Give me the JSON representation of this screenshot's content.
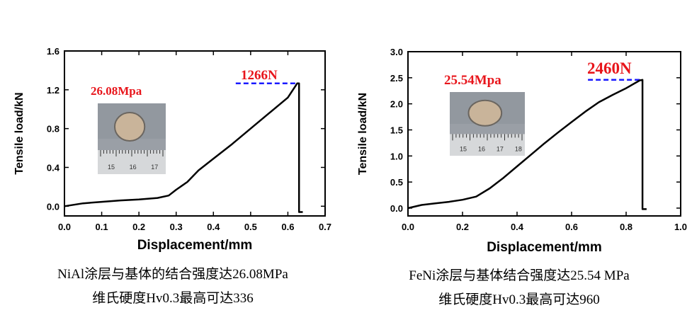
{
  "chart_data": [
    {
      "type": "line",
      "xlabel": "Displacement/mm",
      "ylabel": "Tensile load/kN",
      "xlim": [
        0.0,
        0.7
      ],
      "ylim": [
        -0.1,
        1.6
      ],
      "xticks": [
        "0.0",
        "0.1",
        "0.2",
        "0.3",
        "0.4",
        "0.5",
        "0.6",
        "0.7"
      ],
      "yticks": [
        "0.0",
        "0.4",
        "0.8",
        "1.2",
        "1.6"
      ],
      "grid": false,
      "series": [
        {
          "color": "#000000",
          "x": [
            0.0,
            0.05,
            0.1,
            0.15,
            0.2,
            0.25,
            0.28,
            0.3,
            0.33,
            0.36,
            0.4,
            0.45,
            0.5,
            0.55,
            0.6,
            0.625,
            0.625,
            0.63,
            0.63,
            0.64
          ],
          "y": [
            0.0,
            0.03,
            0.045,
            0.06,
            0.07,
            0.085,
            0.11,
            0.17,
            0.25,
            0.37,
            0.49,
            0.64,
            0.8,
            0.96,
            1.12,
            1.266,
            1.266,
            1.266,
            -0.06,
            -0.06
          ]
        }
      ],
      "peak": {
        "x": [
          0.46,
          0.625
        ],
        "y": 1.266,
        "color": "#1a1aff"
      },
      "annotations": {
        "peak_label": "1266N",
        "strength_label": "26.08Mpa",
        "color": "#e8151b"
      },
      "photo": {
        "ruler_labels": [
          "15",
          "16",
          "17"
        ]
      },
      "caption": [
        "NiAl涂层与基体的结合强度达26.08MPa",
        "维氏硬度Hv0.3最高可达336"
      ]
    },
    {
      "type": "line",
      "xlabel": "Displacement/mm",
      "ylabel": "Tensile load/kN",
      "xlim": [
        0.0,
        1.0
      ],
      "ylim": [
        -0.15,
        3.0
      ],
      "xticks": [
        "0.0",
        "0.2",
        "0.4",
        "0.6",
        "0.8",
        "1.0"
      ],
      "yticks": [
        "0.0",
        "0.5",
        "1.0",
        "1.5",
        "2.0",
        "2.5",
        "3.0"
      ],
      "grid": false,
      "series": [
        {
          "color": "#000000",
          "x": [
            0.0,
            0.05,
            0.1,
            0.15,
            0.2,
            0.25,
            0.3,
            0.35,
            0.4,
            0.45,
            0.5,
            0.55,
            0.6,
            0.65,
            0.7,
            0.75,
            0.8,
            0.85,
            0.86,
            0.86,
            0.875
          ],
          "y": [
            0.0,
            0.06,
            0.09,
            0.12,
            0.16,
            0.22,
            0.38,
            0.58,
            0.8,
            1.02,
            1.24,
            1.45,
            1.65,
            1.85,
            2.03,
            2.17,
            2.3,
            2.45,
            2.46,
            -0.02,
            -0.02
          ]
        }
      ],
      "peak": {
        "x": [
          0.66,
          0.86
        ],
        "y": 2.46,
        "color": "#1a1aff"
      },
      "annotations": {
        "peak_label": "2460N",
        "strength_label": "25.54Mpa",
        "color": "#e8151b"
      },
      "photo": {
        "ruler_labels": [
          "15",
          "16",
          "17",
          "18"
        ]
      },
      "caption": [
        "FeNi涂层与基体结合强度达25.54 MPa",
        "维氏硬度Hv0.3最高可达960"
      ]
    }
  ]
}
